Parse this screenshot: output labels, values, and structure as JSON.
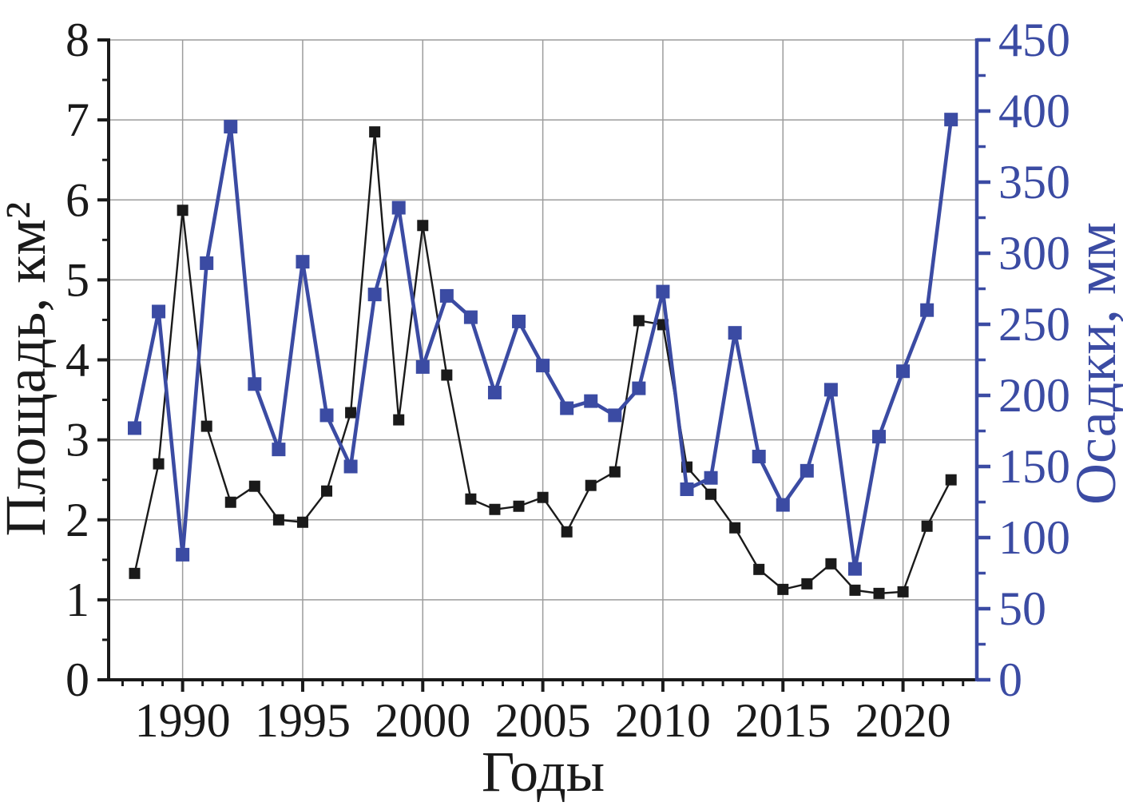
{
  "figure": {
    "background": "#ffffff",
    "grid_color": "#9c9c9c",
    "black": "#1a1a1a",
    "blue": "#3b4ba3"
  },
  "chart_data": {
    "type": "line",
    "title": "",
    "xlabel": "Годы",
    "grid": true,
    "legend": "none",
    "x": [
      1988,
      1989,
      1990,
      1991,
      1992,
      1993,
      1994,
      1995,
      1996,
      1997,
      1998,
      1999,
      2000,
      2001,
      2002,
      2003,
      2004,
      2005,
      2006,
      2007,
      2008,
      2009,
      2010,
      2011,
      2012,
      2013,
      2014,
      2015,
      2016,
      2017,
      2018,
      2019,
      2020,
      2021,
      2022
    ],
    "axes": {
      "left": {
        "label": "Площадь, км²",
        "range": [
          0,
          8
        ],
        "tick_step": 1,
        "minor_tick_step": 0.5,
        "tick_labels": [
          "0",
          "1",
          "2",
          "3",
          "4",
          "5",
          "6",
          "7",
          "8"
        ],
        "color": "#1a1a1a"
      },
      "right": {
        "label": "Осадки, мм",
        "range": [
          0,
          450
        ],
        "tick_step": 50,
        "minor_tick_step": 25,
        "tick_labels": [
          "0",
          "50",
          "100",
          "150",
          "200",
          "250",
          "300",
          "350",
          "400",
          "450"
        ],
        "color": "#3b4ba3"
      },
      "bottom": {
        "label": "Годы",
        "major_tick_years": [
          1990,
          1995,
          2000,
          2005,
          2010,
          2015,
          2020
        ],
        "tick_labels": [
          "1990",
          "1995",
          "2000",
          "2005",
          "2010",
          "2015",
          "2020"
        ],
        "minor_divisions_per_major": 6
      }
    },
    "series": [
      {
        "name": "Площадь, км²",
        "axis": "left",
        "color": "#1a1a1a",
        "marker": "square",
        "values": [
          1.33,
          2.7,
          5.87,
          3.17,
          2.22,
          2.42,
          2.0,
          1.97,
          2.36,
          3.34,
          6.85,
          3.25,
          5.68,
          3.81,
          2.26,
          2.13,
          2.17,
          2.28,
          1.85,
          2.43,
          2.6,
          4.49,
          4.44,
          2.66,
          2.32,
          1.9,
          1.38,
          1.13,
          1.2,
          1.45,
          1.12,
          1.08,
          1.1,
          1.92,
          2.5
        ]
      },
      {
        "name": "Осадки, мм",
        "axis": "right",
        "color": "#3b4ba3",
        "marker": "square",
        "values": [
          177,
          259,
          88,
          293,
          389,
          208,
          162,
          294,
          186,
          150,
          271,
          332,
          220,
          270,
          255,
          202,
          252,
          221,
          191,
          196,
          186,
          205,
          273,
          134,
          142,
          244,
          157,
          123,
          147,
          204,
          78,
          171,
          217,
          260,
          394
        ]
      }
    ]
  }
}
